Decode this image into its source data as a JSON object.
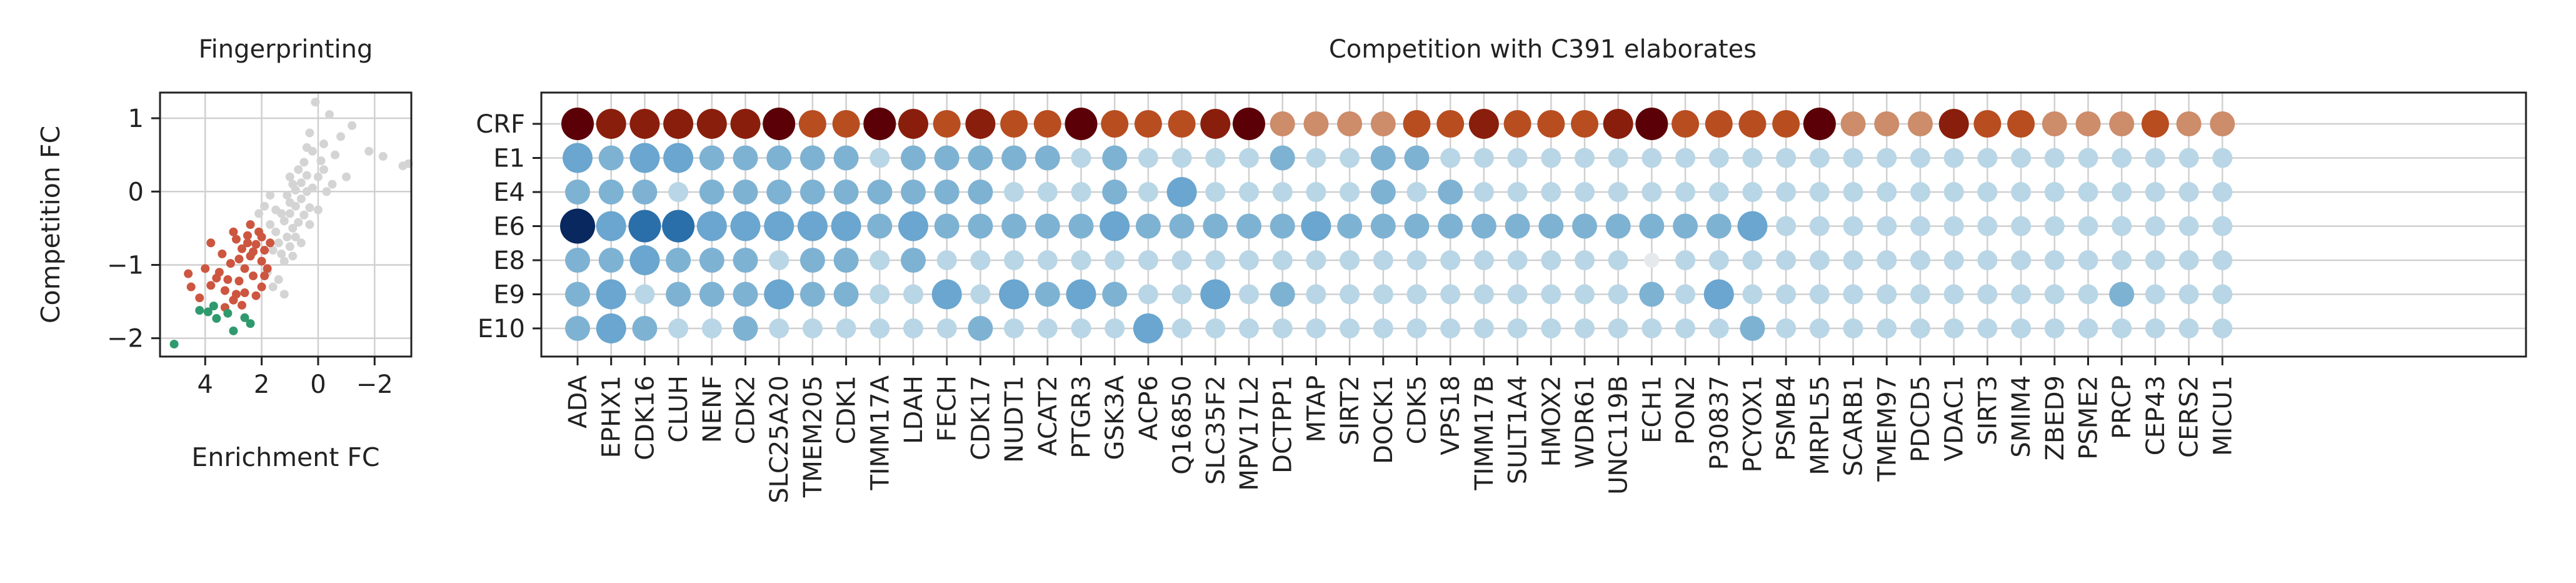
{
  "chart_data": [
    {
      "type": "scatter",
      "title": "Fingerprinting",
      "xlabel": "Enrichment FC",
      "ylabel": "Competition FC",
      "x_reversed": true,
      "xlim": [
        5.6,
        -3.3
      ],
      "ylim": [
        -2.25,
        1.35
      ],
      "xticks": [
        4,
        2,
        0,
        -2
      ],
      "xtick_labels": [
        "4",
        "2",
        "0",
        "−2"
      ],
      "yticks": [
        1,
        0,
        -1,
        -2
      ],
      "ytick_labels": [
        "1",
        "0",
        "−1",
        "−2"
      ],
      "grid": true,
      "colors": {
        "other": "#d4d4d4",
        "competed": "#cd5640",
        "strong": "#2f9a6e"
      },
      "points_strong": [
        [
          5.1,
          -2.08
        ],
        [
          4.2,
          -1.62
        ],
        [
          3.9,
          -1.64
        ],
        [
          3.6,
          -1.73
        ],
        [
          3.2,
          -1.66
        ],
        [
          3.7,
          -1.56
        ],
        [
          2.6,
          -1.72
        ],
        [
          3.0,
          -1.9
        ],
        [
          2.4,
          -1.8
        ]
      ],
      "points_competed": [
        [
          6.1,
          -0.95
        ],
        [
          4.5,
          -1.3
        ],
        [
          4.2,
          -1.45
        ],
        [
          3.8,
          -1.28
        ],
        [
          3.5,
          -1.1
        ],
        [
          3.3,
          -1.35
        ],
        [
          3.0,
          -1.48
        ],
        [
          2.8,
          -1.22
        ],
        [
          2.6,
          -1.05
        ],
        [
          2.4,
          -0.88
        ],
        [
          2.2,
          -0.72
        ],
        [
          2.0,
          -0.95
        ],
        [
          2.3,
          -1.15
        ],
        [
          2.7,
          -0.78
        ],
        [
          2.9,
          -0.65
        ],
        [
          2.5,
          -0.6
        ],
        [
          2.1,
          -0.55
        ],
        [
          1.9,
          -0.8
        ],
        [
          1.7,
          -0.7
        ],
        [
          3.1,
          -0.98
        ],
        [
          3.4,
          -0.85
        ],
        [
          2.0,
          -1.3
        ],
        [
          2.2,
          -1.42
        ],
        [
          2.6,
          -1.38
        ],
        [
          1.8,
          -1.05
        ],
        [
          3.6,
          -1.18
        ],
        [
          4.0,
          -1.05
        ],
        [
          2.4,
          -0.45
        ],
        [
          2.8,
          -0.92
        ],
        [
          3.2,
          -1.2
        ],
        [
          2.0,
          -0.62
        ],
        [
          2.3,
          -0.82
        ],
        [
          1.9,
          -1.15
        ],
        [
          2.5,
          -0.7
        ],
        [
          3.0,
          -0.55
        ],
        [
          3.8,
          -0.7
        ],
        [
          4.6,
          -1.12
        ],
        [
          2.7,
          -1.55
        ],
        [
          2.9,
          -1.4
        ],
        [
          3.3,
          -1.58
        ]
      ],
      "points_other": [
        [
          1.5,
          -0.55
        ],
        [
          1.2,
          -0.4
        ],
        [
          1.0,
          -0.3
        ],
        [
          0.8,
          -0.2
        ],
        [
          0.6,
          -0.1
        ],
        [
          0.4,
          0.0
        ],
        [
          1.4,
          -0.7
        ],
        [
          1.1,
          -0.62
        ],
        [
          0.9,
          -0.5
        ],
        [
          0.7,
          -0.42
        ],
        [
          0.5,
          -0.32
        ],
        [
          0.3,
          -0.22
        ],
        [
          1.3,
          -0.3
        ],
        [
          1.0,
          -0.15
        ],
        [
          0.8,
          0.02
        ],
        [
          0.6,
          0.12
        ],
        [
          0.4,
          0.22
        ],
        [
          1.6,
          -0.8
        ],
        [
          1.3,
          -0.85
        ],
        [
          1.0,
          -0.75
        ],
        [
          0.8,
          -0.62
        ],
        [
          0.2,
          0.05
        ],
        [
          0.0,
          0.2
        ],
        [
          -0.2,
          0.3
        ],
        [
          1.2,
          -0.95
        ],
        [
          0.9,
          -0.88
        ],
        [
          1.7,
          -0.45
        ],
        [
          1.5,
          -0.25
        ],
        [
          1.1,
          -0.05
        ],
        [
          0.7,
          0.3
        ],
        [
          0.5,
          0.4
        ],
        [
          0.2,
          0.55
        ],
        [
          0.1,
          1.22
        ],
        [
          -0.4,
          1.05
        ],
        [
          -1.2,
          0.9
        ],
        [
          -1.8,
          0.55
        ],
        [
          -2.3,
          0.48
        ],
        [
          -3.0,
          0.35
        ],
        [
          -3.2,
          0.38
        ],
        [
          -0.6,
          0.5
        ],
        [
          -0.2,
          0.65
        ],
        [
          0.3,
          0.8
        ],
        [
          -1.0,
          0.2
        ],
        [
          -0.5,
          0.1
        ],
        [
          1.8,
          -1.1
        ],
        [
          1.4,
          -1.2
        ],
        [
          1.6,
          -1.3
        ],
        [
          0.6,
          -0.7
        ],
        [
          1.9,
          -0.2
        ],
        [
          1.7,
          -0.05
        ],
        [
          2.1,
          -0.3
        ],
        [
          0.9,
          0.1
        ],
        [
          0.3,
          -0.45
        ],
        [
          0.0,
          -0.25
        ],
        [
          -0.3,
          0.0
        ],
        [
          -0.1,
          0.42
        ],
        [
          1.2,
          -1.4
        ],
        [
          1.0,
          0.2
        ],
        [
          0.4,
          0.6
        ],
        [
          -0.8,
          0.75
        ]
      ]
    },
    {
      "type": "dot-matrix",
      "title": "Competition with C391 elaborates",
      "rows": [
        "CRF",
        "E1",
        "E4",
        "E6",
        "E8",
        "E9",
        "E10"
      ],
      "columns": [
        "ADA",
        "EPHX1",
        "CDK16",
        "CLUH",
        "NENF",
        "CDK2",
        "SLC25A20",
        "TMEM205",
        "CDK1",
        "TIMM17A",
        "LDAH",
        "FECH",
        "CDK17",
        "NUDT1",
        "ACAT2",
        "PTGR3",
        "GSK3A",
        "ACP6",
        "Q16850",
        "SLC35F2",
        "MPV17L2",
        "DCTPP1",
        "MTAP",
        "SIRT2",
        "DOCK1",
        "CDK5",
        "VPS18",
        "TIMM17B",
        "SULT1A4",
        "HMOX2",
        "WDR61",
        "UNC119B",
        "ECH1",
        "PON2",
        "P30837",
        "PCYOX1",
        "PSMB4",
        "MRPL55",
        "SCARB1",
        "TMEM97",
        "PDCD5",
        "VDAC1",
        "SIRT3",
        "SMIM4",
        "ZBED9",
        "PSME2",
        "PRCP",
        "CEP43",
        "CERS2",
        "MICU1"
      ],
      "grid": true,
      "colormap_crf": [
        "#cd8c6a",
        "#b84d20",
        "#8a1e0c",
        "#5c0008"
      ],
      "colormap_elaborates": [
        "#dde2e6",
        "#b9d6e6",
        "#7eb2d3",
        "#2a6faa",
        "#08285f"
      ],
      "values": {
        "CRF": [
          4,
          3,
          3,
          3,
          3,
          3,
          4,
          2,
          2,
          4,
          3,
          2,
          3,
          2,
          2,
          4,
          2,
          2,
          2,
          3,
          4,
          1,
          1,
          1,
          1,
          2,
          2,
          3,
          2,
          2,
          2,
          3,
          4,
          2,
          2,
          2,
          2,
          4,
          1,
          1,
          1,
          3,
          2,
          2,
          1,
          1,
          1,
          2,
          1,
          1
        ],
        "E1": [
          3,
          2,
          3,
          3,
          2,
          2,
          2,
          2,
          2,
          1,
          2,
          2,
          2,
          2,
          2,
          1,
          2,
          1,
          1,
          1,
          1,
          2,
          1,
          1,
          2,
          2,
          1,
          1,
          1,
          1,
          1,
          1,
          1,
          1,
          1,
          1,
          1,
          1,
          1,
          1,
          1,
          1,
          1,
          1,
          1,
          1,
          1,
          1,
          1,
          1
        ],
        "E4": [
          2,
          2,
          2,
          1,
          2,
          2,
          2,
          2,
          2,
          2,
          2,
          2,
          2,
          1,
          1,
          1,
          2,
          1,
          3,
          1,
          1,
          1,
          1,
          1,
          2,
          1,
          2,
          1,
          1,
          1,
          1,
          1,
          1,
          1,
          1,
          1,
          1,
          1,
          1,
          1,
          1,
          1,
          1,
          1,
          1,
          1,
          1,
          1,
          1,
          1
        ],
        "E6": [
          5,
          3,
          4,
          4,
          3,
          3,
          3,
          3,
          3,
          2,
          3,
          2,
          2,
          2,
          2,
          2,
          3,
          2,
          2,
          2,
          2,
          2,
          3,
          2,
          2,
          2,
          2,
          2,
          2,
          2,
          2,
          2,
          2,
          2,
          2,
          3,
          1,
          1,
          1,
          1,
          1,
          1,
          1,
          1,
          1,
          1,
          1,
          1,
          1,
          1
        ],
        "E8": [
          2,
          2,
          3,
          2,
          2,
          2,
          1,
          2,
          2,
          1,
          2,
          1,
          1,
          1,
          1,
          1,
          1,
          1,
          1,
          1,
          1,
          1,
          1,
          1,
          1,
          1,
          1,
          1,
          1,
          1,
          1,
          1,
          0,
          1,
          1,
          1,
          1,
          1,
          1,
          1,
          1,
          1,
          1,
          1,
          1,
          1,
          1,
          1,
          1,
          1
        ],
        "E9": [
          2,
          3,
          1,
          2,
          2,
          2,
          3,
          2,
          2,
          1,
          1,
          3,
          1,
          3,
          2,
          3,
          2,
          1,
          1,
          3,
          1,
          2,
          1,
          1,
          1,
          1,
          1,
          1,
          1,
          1,
          1,
          1,
          2,
          1,
          3,
          1,
          1,
          1,
          1,
          1,
          1,
          1,
          1,
          1,
          1,
          1,
          2,
          1,
          1,
          1
        ],
        "E10": [
          2,
          3,
          2,
          1,
          1,
          2,
          1,
          1,
          1,
          1,
          1,
          1,
          2,
          1,
          1,
          1,
          1,
          3,
          1,
          1,
          1,
          1,
          1,
          1,
          1,
          1,
          1,
          1,
          1,
          1,
          1,
          1,
          1,
          1,
          1,
          2,
          1,
          1,
          1,
          1,
          1,
          1,
          1,
          1,
          1,
          1,
          1,
          1,
          1,
          1
        ]
      }
    }
  ]
}
